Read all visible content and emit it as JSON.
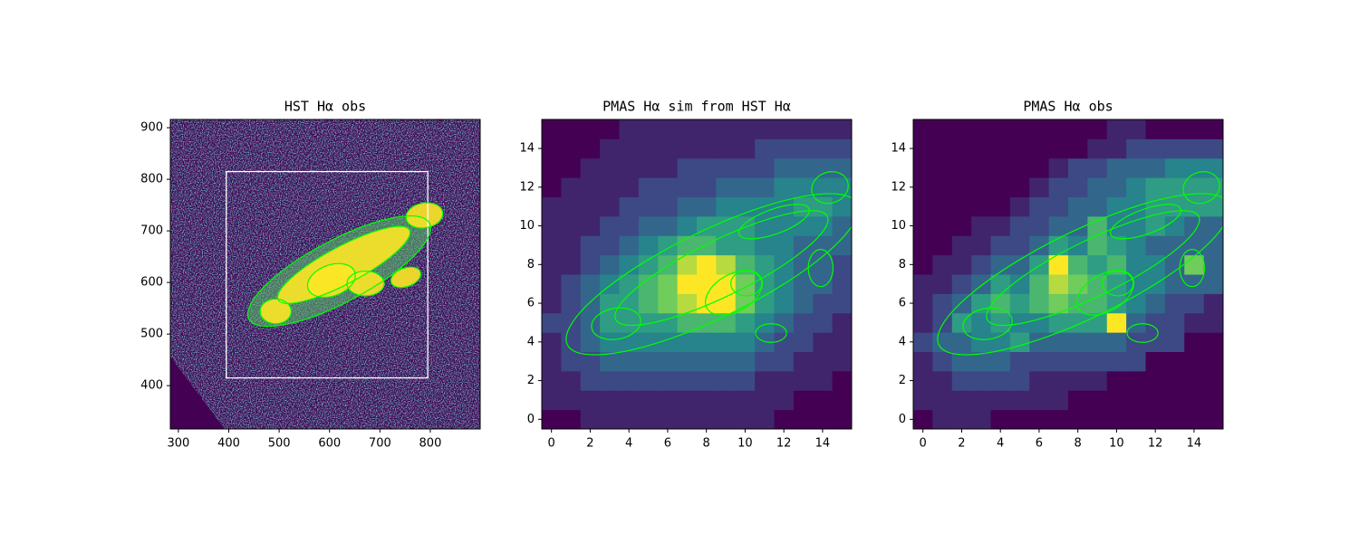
{
  "chart_data": [
    {
      "type": "image",
      "title": "HST Hα obs",
      "xlim": [
        284,
        899
      ],
      "ylim": [
        316,
        916
      ],
      "xticks": [
        300,
        400,
        500,
        600,
        700,
        800
      ],
      "yticks": [
        400,
        500,
        600,
        700,
        800,
        900
      ],
      "box": {
        "x0": 395,
        "y0": 415,
        "x1": 795,
        "y1": 815,
        "color": "#ffffff"
      },
      "cmap": "viridis",
      "contour_color": "#00ff00"
    },
    {
      "type": "heatmap",
      "title": "PMAS Hα sim from HST Hα",
      "xlim": [
        -0.5,
        15.5
      ],
      "ylim": [
        -0.5,
        15.5
      ],
      "xticks": [
        0,
        2,
        4,
        6,
        8,
        10,
        12,
        14
      ],
      "yticks": [
        0,
        2,
        4,
        6,
        8,
        10,
        12,
        14
      ],
      "cmap": "viridis",
      "contour_color": "#00ff00",
      "z": [
        [
          0,
          0,
          1,
          1,
          1,
          1,
          1,
          1,
          1,
          1,
          1,
          1,
          0,
          0,
          0,
          0
        ],
        [
          1,
          1,
          1,
          1,
          1,
          1,
          1,
          1,
          1,
          1,
          1,
          1,
          1,
          0,
          0,
          0
        ],
        [
          1,
          1,
          2,
          2,
          2,
          2,
          2,
          2,
          2,
          2,
          2,
          1,
          1,
          1,
          1,
          0
        ],
        [
          1,
          2,
          2,
          3,
          3,
          3,
          3,
          3,
          3,
          3,
          3,
          2,
          2,
          1,
          1,
          1
        ],
        [
          1,
          2,
          3,
          4,
          4,
          4,
          4,
          4,
          4,
          4,
          4,
          3,
          2,
          2,
          1,
          1
        ],
        [
          2,
          2,
          3,
          5,
          5,
          5,
          5,
          6,
          6,
          6,
          5,
          4,
          3,
          2,
          2,
          1
        ],
        [
          1,
          2,
          3,
          5,
          5,
          6,
          7,
          8,
          9,
          9,
          7,
          5,
          4,
          3,
          2,
          2
        ],
        [
          1,
          2,
          3,
          4,
          5,
          6,
          7,
          9,
          9,
          9,
          7,
          5,
          4,
          3,
          3,
          2
        ],
        [
          1,
          1,
          2,
          3,
          4,
          5,
          6,
          8,
          9,
          8,
          6,
          5,
          4,
          3,
          3,
          2
        ],
        [
          1,
          1,
          2,
          2,
          3,
          4,
          5,
          6,
          6,
          5,
          5,
          4,
          4,
          3,
          3,
          3
        ],
        [
          1,
          1,
          1,
          2,
          2,
          3,
          3,
          4,
          5,
          5,
          5,
          4,
          4,
          4,
          4,
          3
        ],
        [
          1,
          1,
          1,
          1,
          2,
          2,
          2,
          3,
          3,
          4,
          4,
          4,
          4,
          5,
          5,
          4
        ],
        [
          0,
          1,
          1,
          1,
          1,
          2,
          2,
          2,
          2,
          3,
          3,
          3,
          4,
          4,
          4,
          4
        ],
        [
          0,
          0,
          1,
          1,
          1,
          1,
          1,
          2,
          2,
          2,
          2,
          2,
          3,
          3,
          3,
          3
        ],
        [
          0,
          0,
          0,
          1,
          1,
          1,
          1,
          1,
          1,
          1,
          1,
          2,
          2,
          2,
          2,
          2
        ],
        [
          0,
          0,
          0,
          0,
          1,
          1,
          1,
          1,
          1,
          1,
          1,
          1,
          1,
          1,
          1,
          1
        ]
      ]
    },
    {
      "type": "heatmap",
      "title": "PMAS Hα obs",
      "xlim": [
        -0.5,
        15.5
      ],
      "ylim": [
        -0.5,
        15.5
      ],
      "xticks": [
        0,
        2,
        4,
        6,
        8,
        10,
        12,
        14
      ],
      "yticks": [
        0,
        2,
        4,
        6,
        8,
        10,
        12,
        14
      ],
      "cmap": "viridis",
      "contour_color": "#00ff00",
      "z": [
        [
          0,
          1,
          1,
          1,
          0,
          0,
          0,
          0,
          0,
          0,
          0,
          0,
          0,
          0,
          0,
          0
        ],
        [
          1,
          1,
          1,
          1,
          1,
          1,
          1,
          1,
          0,
          0,
          0,
          0,
          0,
          0,
          0,
          0
        ],
        [
          1,
          1,
          2,
          2,
          2,
          2,
          1,
          1,
          1,
          1,
          0,
          0,
          0,
          0,
          0,
          0
        ],
        [
          1,
          2,
          3,
          3,
          3,
          2,
          2,
          2,
          2,
          2,
          2,
          2,
          0,
          0,
          0,
          0
        ],
        [
          2,
          3,
          3,
          4,
          4,
          5,
          3,
          3,
          3,
          3,
          3,
          2,
          2,
          2,
          0,
          0
        ],
        [
          1,
          2,
          5,
          4,
          5,
          4,
          4,
          5,
          5,
          5,
          9,
          3,
          2,
          2,
          1,
          1
        ],
        [
          1,
          2,
          3,
          5,
          6,
          5,
          6,
          7,
          6,
          6,
          5,
          4,
          3,
          2,
          2,
          1
        ],
        [
          1,
          1,
          2,
          3,
          5,
          4,
          6,
          8,
          7,
          6,
          5,
          4,
          4,
          3,
          3,
          3
        ],
        [
          0,
          1,
          1,
          2,
          3,
          3,
          5,
          9,
          6,
          5,
          6,
          4,
          4,
          3,
          7,
          3
        ],
        [
          0,
          0,
          1,
          1,
          2,
          2,
          3,
          5,
          4,
          6,
          5,
          4,
          3,
          3,
          3,
          3
        ],
        [
          0,
          0,
          0,
          1,
          1,
          2,
          2,
          3,
          3,
          6,
          4,
          4,
          5,
          4,
          3,
          3
        ],
        [
          0,
          0,
          0,
          0,
          0,
          1,
          2,
          2,
          3,
          3,
          4,
          4,
          5,
          5,
          5,
          5
        ],
        [
          0,
          0,
          0,
          0,
          0,
          0,
          1,
          2,
          2,
          3,
          3,
          4,
          5,
          5,
          5,
          5
        ],
        [
          0,
          0,
          0,
          0,
          0,
          0,
          0,
          1,
          2,
          2,
          3,
          3,
          3,
          4,
          4,
          4
        ],
        [
          0,
          0,
          0,
          0,
          0,
          0,
          0,
          0,
          0,
          1,
          1,
          2,
          2,
          2,
          2,
          2
        ],
        [
          0,
          0,
          0,
          0,
          0,
          0,
          0,
          0,
          0,
          0,
          1,
          1,
          0,
          0,
          0,
          0
        ]
      ]
    }
  ]
}
